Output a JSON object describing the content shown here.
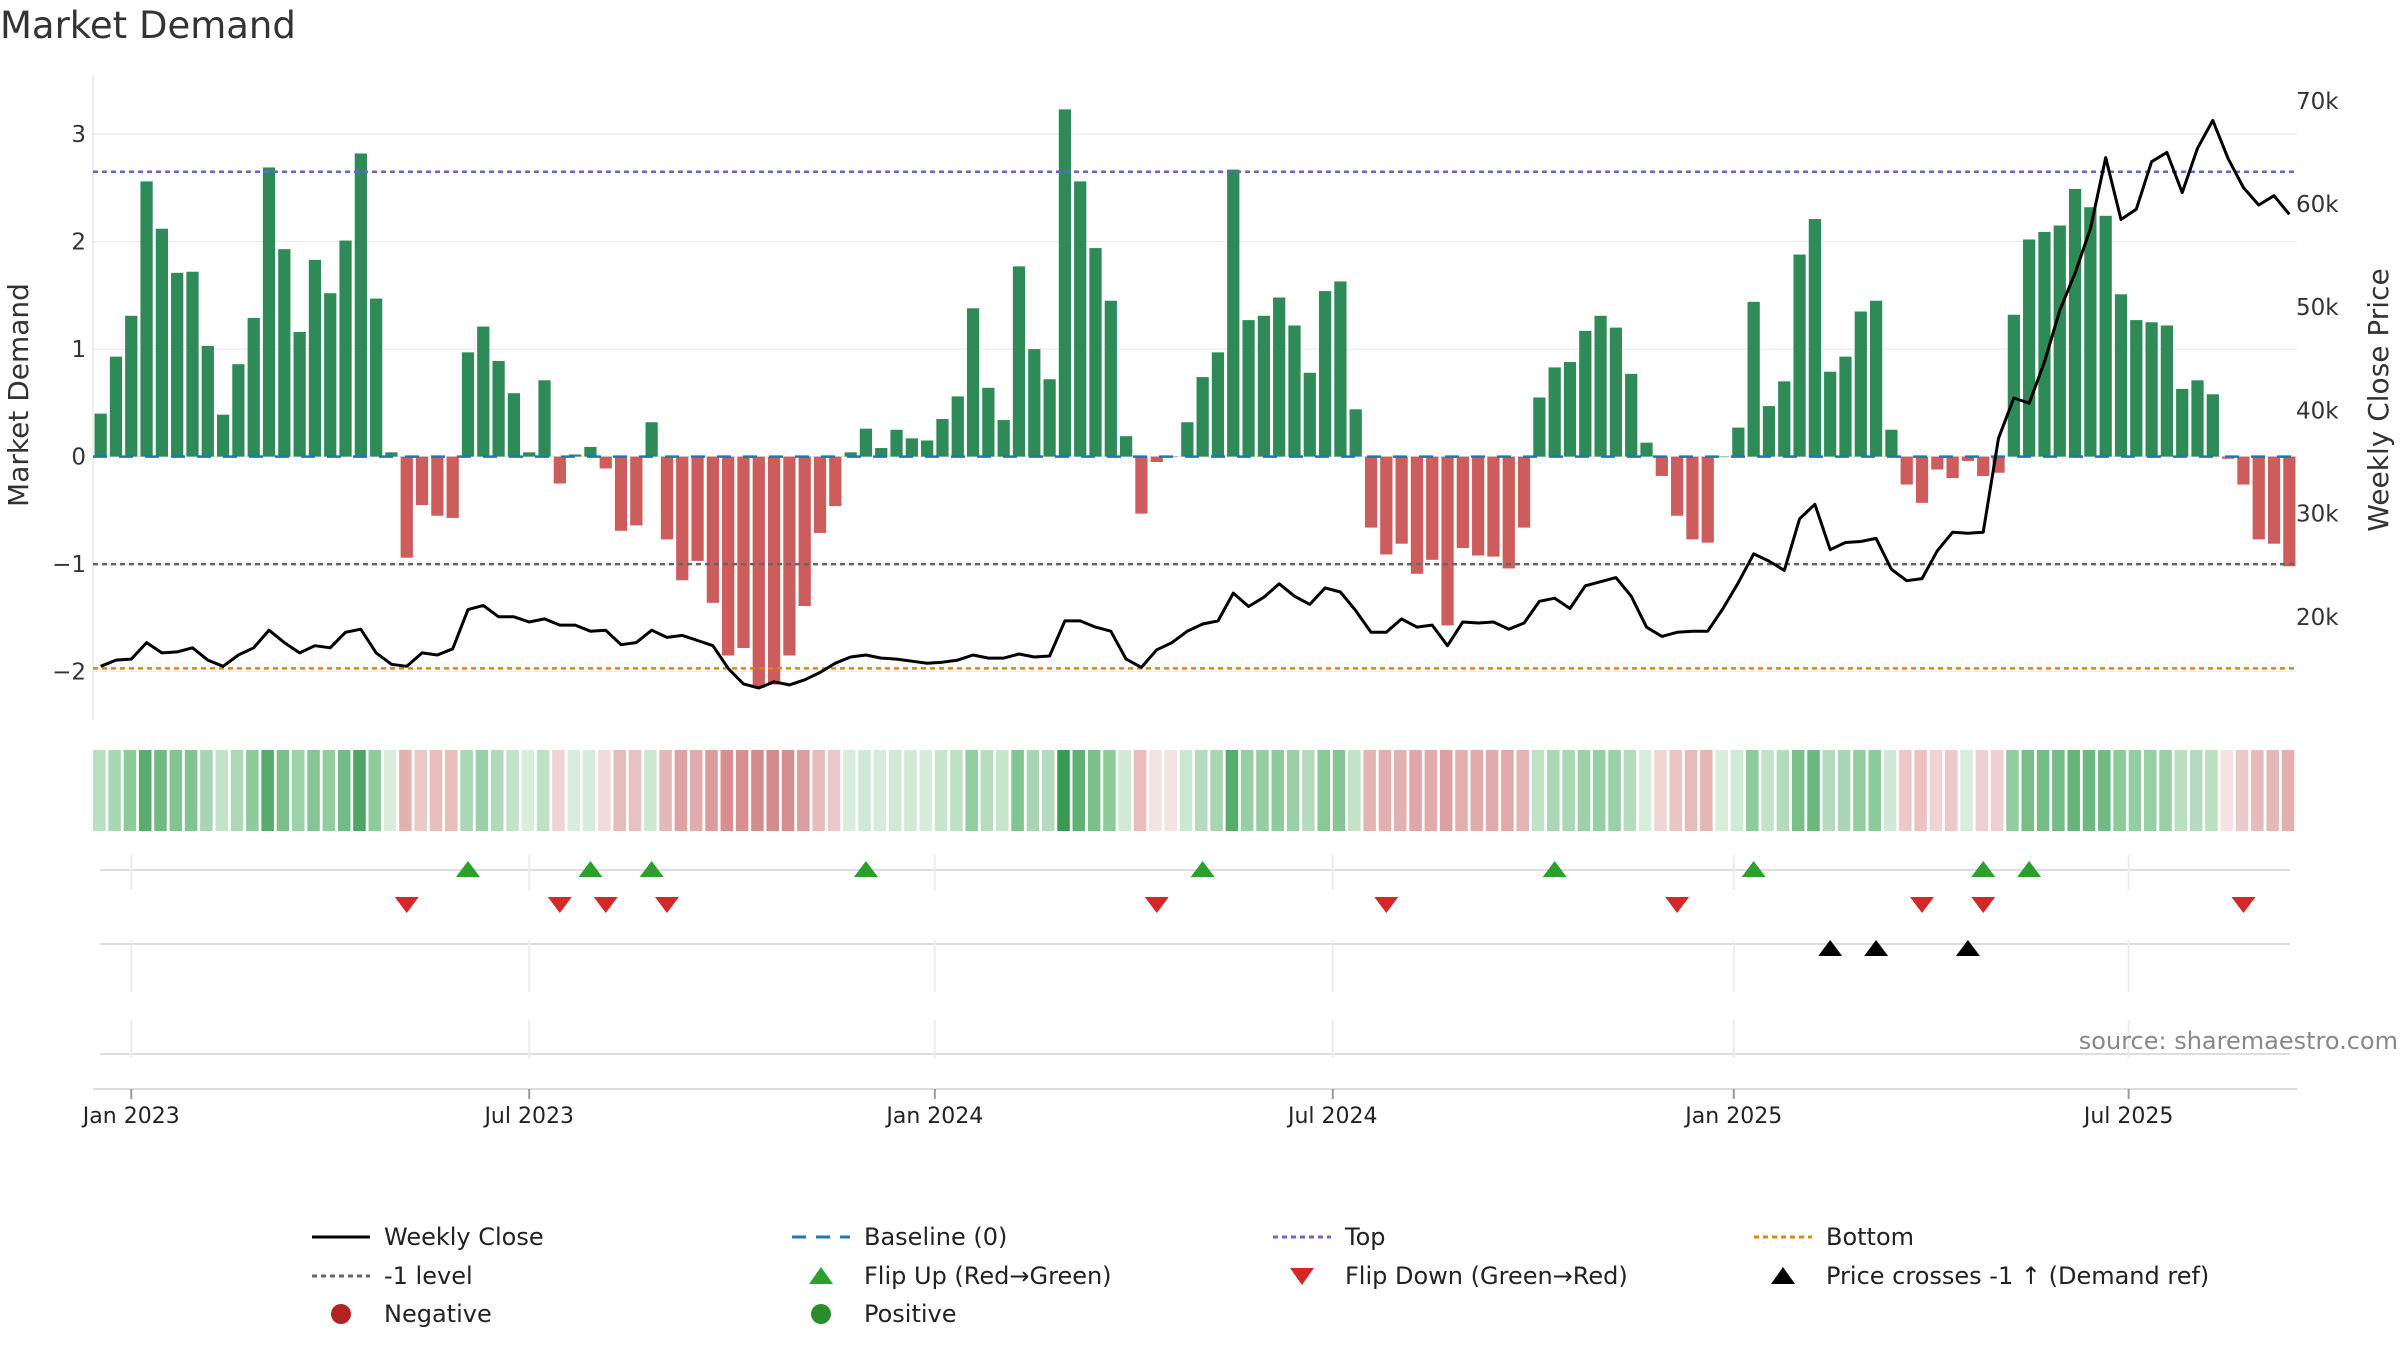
{
  "chart_data": {
    "type": "bar",
    "title": "Market Demand",
    "ylabel": "Market Demand",
    "y2label": "Weekly Close Price",
    "ylim": [
      -2.45,
      3.55
    ],
    "y2lim": [
      10000,
      72500
    ],
    "yticks": [
      -2,
      -1,
      0,
      1,
      2,
      3
    ],
    "y2ticks": [
      {
        "value": 20000,
        "label": "20k"
      },
      {
        "value": 30000,
        "label": "30k"
      },
      {
        "value": 40000,
        "label": "40k"
      },
      {
        "value": 50000,
        "label": "50k"
      },
      {
        "value": 60000,
        "label": "60k"
      },
      {
        "value": 70000,
        "label": "70k"
      }
    ],
    "date_ticks": [
      {
        "label": "Jan 2023",
        "week": 2
      },
      {
        "label": "Jul 2023",
        "week": 28
      },
      {
        "label": "Jan 2024",
        "week": 54.5
      },
      {
        "label": "Jul 2024",
        "week": 80.5
      },
      {
        "label": "Jan 2025",
        "week": 106.7
      },
      {
        "label": "Jul 2025",
        "week": 132.5
      }
    ],
    "levels": {
      "baseline": 0,
      "top": 2.65,
      "minus_one": -1,
      "bottom": -1.97
    },
    "demand": [
      0.4,
      0.93,
      1.31,
      2.56,
      2.12,
      1.71,
      1.72,
      1.03,
      0.39,
      0.86,
      1.29,
      2.69,
      1.93,
      1.16,
      1.83,
      1.52,
      2.01,
      2.82,
      1.47,
      0.04,
      -0.94,
      -0.45,
      -0.55,
      -0.57,
      0.97,
      1.21,
      0.89,
      0.59,
      0.04,
      0.71,
      -0.25,
      0.02,
      0.09,
      -0.11,
      -0.69,
      -0.64,
      0.32,
      -0.77,
      -1.15,
      -0.97,
      -1.36,
      -1.85,
      -1.78,
      -2.15,
      -2.12,
      -1.85,
      -1.39,
      -0.71,
      -0.46,
      0.04,
      0.26,
      0.08,
      0.25,
      0.17,
      0.15,
      0.35,
      0.56,
      1.38,
      0.64,
      0.34,
      1.77,
      1.0,
      0.72,
      3.23,
      2.56,
      1.94,
      1.45,
      0.19,
      -0.53,
      -0.05,
      0.0,
      0.32,
      0.74,
      0.97,
      2.67,
      1.27,
      1.31,
      1.48,
      1.22,
      0.78,
      1.54,
      1.63,
      0.44,
      -0.66,
      -0.91,
      -0.81,
      -1.09,
      -0.96,
      -1.57,
      -0.85,
      -0.92,
      -0.93,
      -1.04,
      -0.66,
      0.55,
      0.83,
      0.88,
      1.17,
      1.31,
      1.2,
      0.77,
      0.13,
      -0.18,
      -0.55,
      -0.77,
      -0.8,
      0.0,
      0.27,
      1.44,
      0.47,
      0.7,
      1.88,
      2.21,
      0.79,
      0.93,
      1.35,
      1.45,
      0.25,
      -0.26,
      -0.43,
      -0.12,
      -0.2,
      -0.04,
      -0.18,
      -0.15,
      1.32,
      2.02,
      2.09,
      2.15,
      2.49,
      2.32,
      2.24,
      1.51,
      1.27,
      1.25,
      1.22,
      0.63,
      0.71,
      0.58,
      -0.02,
      -0.26,
      -0.77,
      -0.81,
      -1.02
    ],
    "weekly_close": [
      15200,
      15800,
      15900,
      17500,
      16500,
      16600,
      17000,
      15800,
      15200,
      16300,
      17000,
      18700,
      17500,
      16500,
      17200,
      17000,
      18500,
      18800,
      16500,
      15400,
      15200,
      16500,
      16300,
      16900,
      20700,
      21100,
      20000,
      20000,
      19500,
      19800,
      19200,
      19200,
      18600,
      18700,
      17300,
      17500,
      18700,
      18000,
      18200,
      17700,
      17200,
      15000,
      13500,
      13100,
      13700,
      13400,
      13900,
      14600,
      15500,
      16100,
      16300,
      16000,
      15900,
      15700,
      15500,
      15600,
      15800,
      16300,
      16000,
      16000,
      16400,
      16100,
      16200,
      19600,
      19600,
      19000,
      18600,
      15900,
      15100,
      16800,
      17500,
      18600,
      19300,
      19600,
      22300,
      21000,
      21900,
      23200,
      22000,
      21200,
      22800,
      22400,
      20600,
      18500,
      18500,
      19800,
      19000,
      19200,
      17200,
      19500,
      19400,
      19500,
      18800,
      19400,
      21500,
      21800,
      20800,
      23000,
      23400,
      23800,
      22000,
      19000,
      18100,
      18500,
      18600,
      18600,
      20800,
      23300,
      26100,
      25400,
      24500,
      29500,
      30900,
      26500,
      27200,
      27300,
      27600,
      24600,
      23500,
      23700,
      26400,
      28200,
      28100,
      28200,
      37300,
      41200,
      40700,
      44700,
      49700,
      53300,
      57600,
      64500,
      58500,
      59500,
      64100,
      65000,
      61100,
      65400,
      68100,
      64400,
      61600,
      59900,
      60800,
      59000
    ],
    "strip_colors": [
      "#b8dfc0",
      "#a9d7b3",
      "#8ccb9a",
      "#59ad6c",
      "#6fba82",
      "#82c392",
      "#82c392",
      "#a8d6b2",
      "#c2e3c8",
      "#acd8b5",
      "#8dcb9b",
      "#58ac6b",
      "#7bbf8b",
      "#9dd1a8",
      "#85c595",
      "#91cd9f",
      "#72bc85",
      "#4fa563",
      "#8dcb9b",
      "#d8eddb",
      "#e4b1b1",
      "#ecc9c9",
      "#eabdbd",
      "#eabdbd",
      "#aad7b4",
      "#9ad0a6",
      "#b0d9b9",
      "#c2e3c8",
      "#d8eddb",
      "#bde1c5",
      "#f0d4d4",
      "#d8eddb",
      "#d4ecd9",
      "#f2dbdb",
      "#e6bbbb",
      "#e8c2c2",
      "#cbe8d1",
      "#e5b8b8",
      "#dea2a2",
      "#e2acac",
      "#db9c9c",
      "#d58f8f",
      "#d69090",
      "#d48b8b",
      "#d48b8b",
      "#d58f8f",
      "#dc9e9e",
      "#e6bbbb",
      "#ecc9c9",
      "#d8eddb",
      "#cde8d3",
      "#d6ecdb",
      "#cee9d4",
      "#d1ead6",
      "#d4ecd9",
      "#c8e6cd",
      "#bde1c5",
      "#93cea1",
      "#b6dcbd",
      "#c7e5cc",
      "#82c392",
      "#a8d6b2",
      "#b4dbbd",
      "#3a9a52",
      "#5fb072",
      "#7bbf8b",
      "#8dcb9b",
      "#d0ead5",
      "#eabdbd",
      "#f5e2e2",
      "#f5e2e2",
      "#cbe8d1",
      "#b4dbbd",
      "#a8d6b2",
      "#58ac6b",
      "#97cfa4",
      "#96cea3",
      "#8ccb9a",
      "#9ad0a6",
      "#b5dbbd",
      "#88c897",
      "#85c595",
      "#c3e3c9",
      "#e4b4b4",
      "#e3aeae",
      "#e2b0b0",
      "#dfa7a7",
      "#e1abab",
      "#dca0a0",
      "#e2afaf",
      "#e1abab",
      "#e1aaaa",
      "#e0a8a8",
      "#e4b4b4",
      "#c0e2c6",
      "#abd7b4",
      "#a9d7b3",
      "#9cd1a7",
      "#95cfa3",
      "#9ad0a6",
      "#b5dbbd",
      "#d8eddb",
      "#f0d4d4",
      "#ebc4c4",
      "#e6bbbb",
      "#e4b6b6",
      "#d8eddb",
      "#cee9d4",
      "#8ccb9a",
      "#c2e3c8",
      "#b4dbbd",
      "#7bbf8b",
      "#6ab87d",
      "#b5dbbd",
      "#a9d7b3",
      "#93cea1",
      "#8ccb9a",
      "#cfe9d4",
      "#eec8c8",
      "#ebc1c1",
      "#f0d4d4",
      "#eec8c8",
      "#d8eddb",
      "#efd0d0",
      "#efd0d0",
      "#91cd9f",
      "#78be89",
      "#74bd87",
      "#72bc85",
      "#66b679",
      "#6db981",
      "#70bb83",
      "#8bca99",
      "#96cea3",
      "#97cfa4",
      "#98cfa5",
      "#b8dfc0",
      "#b4dbbd",
      "#bae0c1",
      "#f5e2e2",
      "#ecc9c9",
      "#e6bbbb",
      "#e5b8b8",
      "#e3afaf"
    ],
    "flip_up_weeks": [
      24,
      32,
      36,
      50,
      72,
      95,
      108,
      123,
      126
    ],
    "flip_down_weeks": [
      20,
      30,
      33,
      37,
      69,
      84,
      103,
      119,
      123,
      140
    ],
    "price_cross_weeks": [
      113,
      116,
      122
    ],
    "legend": [
      {
        "label": "Weekly Close",
        "kind": "line",
        "color": "#000000"
      },
      {
        "label": "Baseline (0)",
        "kind": "dash",
        "color": "#1f77b4"
      },
      {
        "label": "Top",
        "kind": "dot",
        "color": "#6666cc"
      },
      {
        "label": "Bottom",
        "kind": "dot",
        "color": "#dd8800"
      },
      {
        "label": "-1 level",
        "kind": "dot",
        "color": "#666666"
      },
      {
        "label": "Flip Up (Red→Green)",
        "kind": "tri-up",
        "color": "#2ca02c"
      },
      {
        "label": "Flip Down (Green→Red)",
        "kind": "tri-down",
        "color": "#d62728"
      },
      {
        "label": "Price crosses -1 ↑ (Demand ref)",
        "kind": "tri-up",
        "color": "#000000"
      },
      {
        "label": "Positive",
        "kind": "circle",
        "color": "#2a8c2a"
      },
      {
        "label": "Negative",
        "kind": "circle",
        "color": "#b22222"
      }
    ],
    "colors": {
      "positive_bar": "#2e8b57",
      "negative_bar": "#cd5c5c",
      "grid": "#e8e8e8"
    }
  },
  "source": "source: sharemaestro.com"
}
